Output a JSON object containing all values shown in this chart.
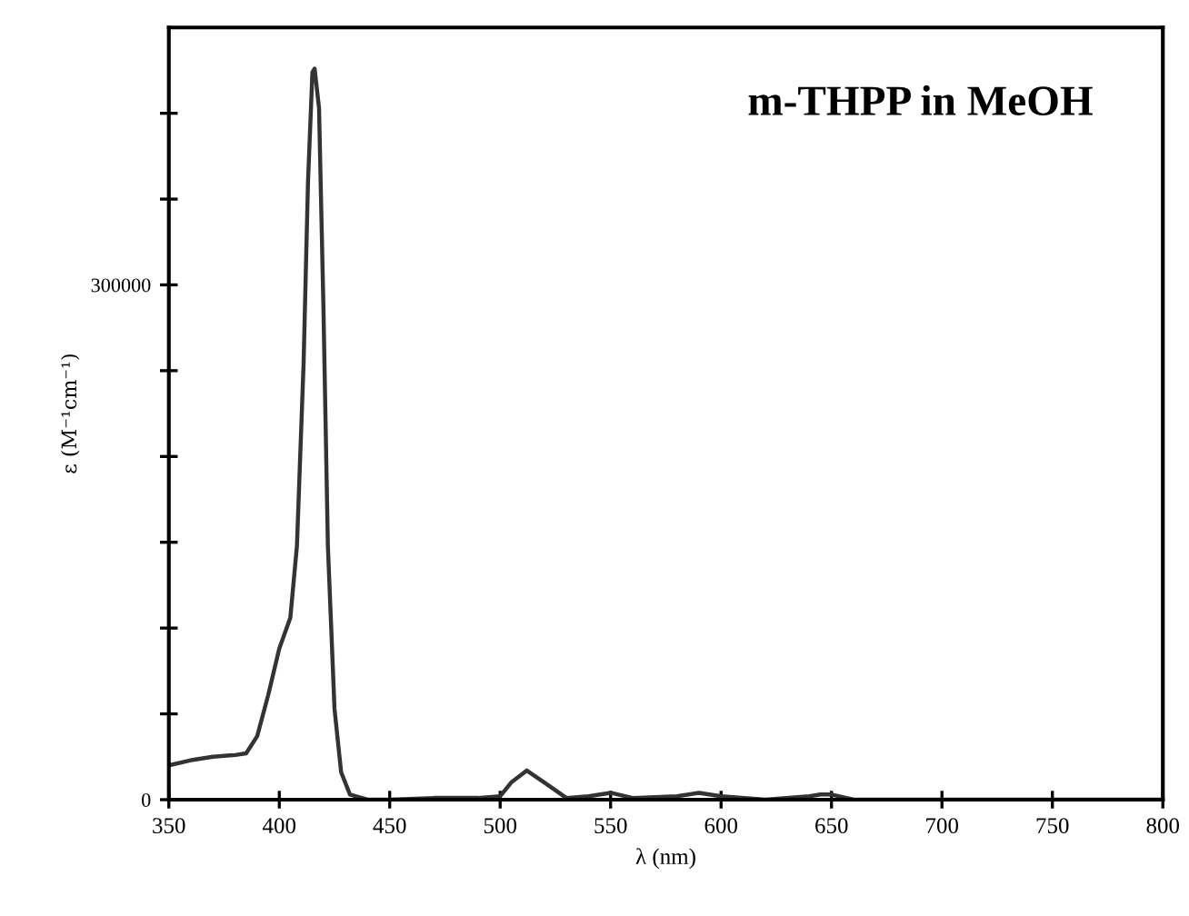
{
  "chart_data": {
    "type": "line",
    "title": "m-THPP in MeOH",
    "xlabel": "λ (nm)",
    "ylabel": "ε (M⁻¹cm⁻¹)",
    "x": [
      350,
      360,
      370,
      380,
      385,
      390,
      395,
      400,
      405,
      408,
      411,
      413,
      415,
      416,
      418,
      420,
      422,
      425,
      428,
      432,
      440,
      450,
      470,
      490,
      500,
      505,
      512,
      520,
      530,
      540,
      550,
      560,
      580,
      590,
      600,
      620,
      640,
      645,
      650,
      660,
      700,
      750,
      800
    ],
    "series": [
      {
        "color": "#333333",
        "values": [
          20000,
          23000,
          25000,
          26000,
          27000,
          37000,
          61000,
          88000,
          106000,
          148000,
          254000,
          360000,
          424000,
          426000,
          403000,
          286000,
          148000,
          53000,
          16000,
          3000,
          0,
          0,
          1000,
          1000,
          2000,
          10000,
          17000,
          10000,
          1000,
          2000,
          4000,
          1000,
          2000,
          4000,
          2000,
          0,
          2000,
          3000,
          3000,
          0,
          0,
          0,
          0
        ]
      }
    ],
    "xlim": [
      350,
      800
    ],
    "xticks": [
      350,
      400,
      450,
      500,
      550,
      600,
      650,
      700,
      750,
      800
    ],
    "ylim": [
      0,
      450000
    ],
    "yticks": [
      0,
      {
        "value": 50000,
        "label": null
      },
      {
        "value": 100000,
        "label": null
      },
      {
        "value": 150000,
        "label": null
      },
      {
        "value": 200000,
        "label": null
      },
      {
        "value": 250000,
        "label": null
      },
      300000,
      {
        "value": 350000,
        "label": null
      },
      {
        "value": 400000,
        "label": null
      }
    ],
    "grid": false,
    "legend": false,
    "marker": "none",
    "line_style": "solid"
  }
}
